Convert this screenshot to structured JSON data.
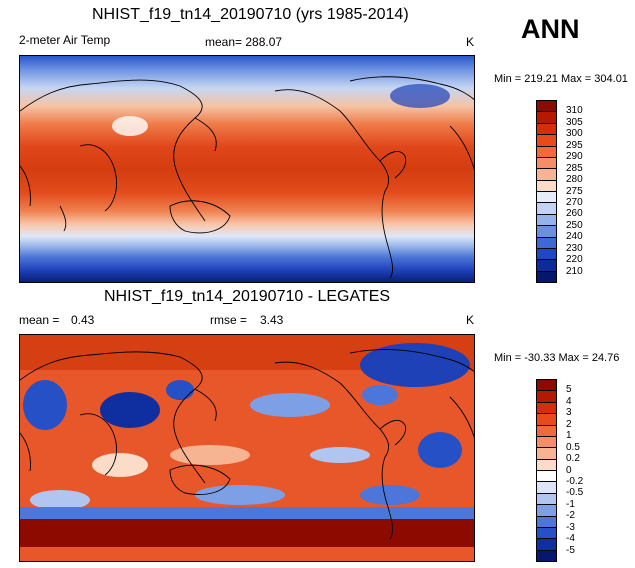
{
  "page_title": "NHIST_f19_tn14_20190710 (yrs 1985-2014)",
  "season": "ANN",
  "top_panel": {
    "variable_label": "2-meter Air Temp",
    "mean_text": "mean= 288.07",
    "units": "K",
    "minmax_text": "Min = 219.21 Max = 304.01",
    "colorbar": {
      "labels": [
        "310",
        "305",
        "300",
        "295",
        "290",
        "285",
        "280",
        "275",
        "270",
        "260",
        "250",
        "240",
        "230",
        "220",
        "210"
      ],
      "colors": [
        "#8c0a00",
        "#b51a00",
        "#d42e0a",
        "#e84a1c",
        "#f26a3a",
        "#f58e66",
        "#f7b493",
        "#fbdcc8",
        "#e6ecf9",
        "#c2d3f3",
        "#94b3ea",
        "#6a90e0",
        "#3d68d6",
        "#1f47c2",
        "#0c2a9a",
        "#04176b"
      ]
    }
  },
  "bottom_panel": {
    "title": "NHIST_f19_tn14_20190710 - LEGATES",
    "mean_label": "mean =",
    "mean_value": "0.43",
    "rmse_label": "rmse =",
    "rmse_value": "3.43",
    "units": "K",
    "minmax_text": "Min = -30.33 Max = 24.76",
    "colorbar": {
      "labels": [
        "5",
        "4",
        "3",
        "2",
        "1",
        "0.5",
        "0.2",
        "0",
        "-0.2",
        "-0.5",
        "-1",
        "-2",
        "-3",
        "-4",
        "-5"
      ],
      "colors": [
        "#8c0a00",
        "#b51a00",
        "#d42e0a",
        "#e84a1c",
        "#f26a3a",
        "#f58e66",
        "#f7b493",
        "#fbdcc8",
        "#ffffff",
        "#dbe4f8",
        "#b0c6f0",
        "#7d9fe5",
        "#4c76d9",
        "#2650c6",
        "#0f2fa0",
        "#05186e"
      ]
    }
  }
}
